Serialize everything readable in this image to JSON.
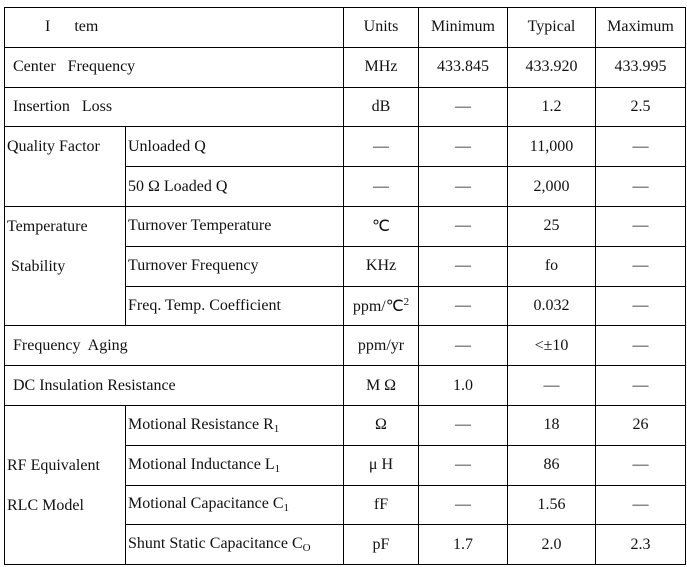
{
  "header": {
    "item_i": "I",
    "item_rest": "tem",
    "units": "Units",
    "minimum": "Minimum",
    "typical": "Typical",
    "maximum": "Maximum"
  },
  "groups": [
    {
      "id": "center-frequency",
      "label": "Center   Frequency",
      "rows": [
        {
          "units": "MHz",
          "min": "433.845",
          "typ": "433.920",
          "max": "433.995"
        }
      ]
    },
    {
      "id": "insertion-loss",
      "label": "Insertion   Loss",
      "rows": [
        {
          "units": "dB",
          "min": "—",
          "typ": "1.2",
          "max": "2.5"
        }
      ]
    },
    {
      "id": "quality-factor",
      "label_lines": [
        "Quality Factor"
      ],
      "rows": [
        {
          "item": "Unloaded Q",
          "units": "—",
          "min": "—",
          "typ": "11,000",
          "max": "—"
        },
        {
          "item": "50 Ω Loaded Q",
          "units": "—",
          "min": "—",
          "typ": "2,000",
          "max": "—"
        }
      ]
    },
    {
      "id": "temperature-stability",
      "label_lines": [
        "Temperature",
        " Stability"
      ],
      "rows": [
        {
          "item": "Turnover Temperature",
          "units": "℃",
          "min": "—",
          "typ": "25",
          "max": "—"
        },
        {
          "item": "Turnover Frequency",
          "units": "KHz",
          "min": "—",
          "typ": "fo",
          "max": "—"
        },
        {
          "item": "Freq. Temp. Coefficient",
          "units": "ppm/℃",
          "units_sup": "2",
          "min": "—",
          "typ": "0.032",
          "max": "—"
        }
      ]
    },
    {
      "id": "frequency-aging",
      "label": "Frequency  Aging",
      "rows": [
        {
          "units": "ppm/yr",
          "min": "—",
          "typ": "<±10",
          "max": "—"
        }
      ]
    },
    {
      "id": "dc-insulation-resistance",
      "label": "DC Insulation Resistance",
      "rows": [
        {
          "units": "M Ω",
          "min": "1.0",
          "typ": "—",
          "max": "—"
        }
      ]
    },
    {
      "id": "rf-equivalent-rlc-model",
      "label_lines": [
        "RF Equivalent",
        "RLC Model"
      ],
      "rows": [
        {
          "item": "Motional Resistance R",
          "item_sub": "1",
          "units": "Ω",
          "min": "—",
          "typ": "18",
          "max": "26"
        },
        {
          "item": "Motional Inductance L",
          "item_sub": "1",
          "units": "μ H",
          "min": "—",
          "typ": "86",
          "max": "—"
        },
        {
          "item": "Motional Capacitance C",
          "item_sub": "1",
          "units": "fF",
          "min": "—",
          "typ": "1.56",
          "max": "—"
        },
        {
          "item": "Shunt Static Capacitance C",
          "item_sub": "O",
          "units": "pF",
          "min": "1.7",
          "typ": "2.0",
          "max": "2.3"
        }
      ]
    }
  ]
}
